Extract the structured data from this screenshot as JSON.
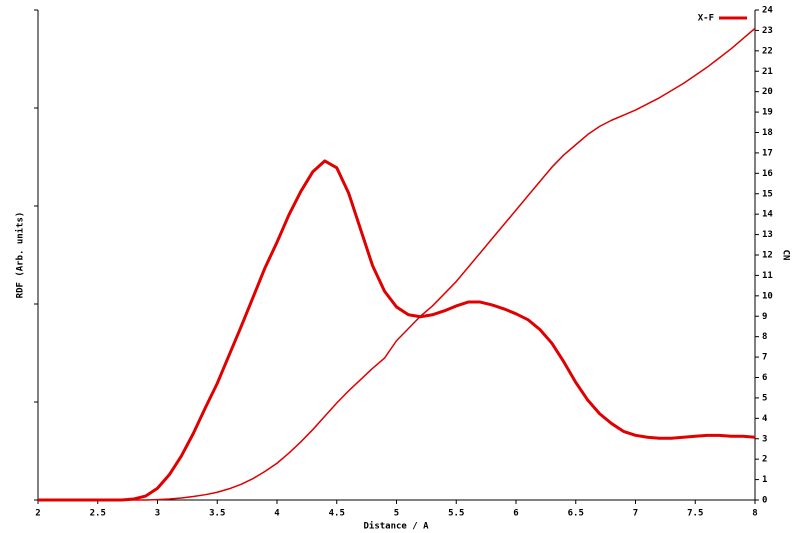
{
  "chart_data": {
    "type": "line",
    "xlabel": "Distance / A",
    "ylabel": "RDF (Arb. units)",
    "y2label": "CN",
    "x": [
      2.0,
      2.1,
      2.2,
      2.3,
      2.4,
      2.5,
      2.6,
      2.7,
      2.8,
      2.9,
      3.0,
      3.1,
      3.2,
      3.3,
      3.4,
      3.5,
      3.6,
      3.7,
      3.8,
      3.9,
      4.0,
      4.1,
      4.2,
      4.3,
      4.4,
      4.5,
      4.6,
      4.7,
      4.8,
      4.9,
      5.0,
      5.1,
      5.2,
      5.3,
      5.4,
      5.5,
      5.6,
      5.7,
      5.8,
      5.9,
      6.0,
      6.1,
      6.2,
      6.3,
      6.4,
      6.5,
      6.6,
      6.7,
      6.8,
      6.9,
      7.0,
      7.1,
      7.2,
      7.3,
      7.4,
      7.5,
      7.6,
      7.7,
      7.8,
      7.9,
      8.0
    ],
    "series": [
      {
        "name": "X-F",
        "color": "#e00000",
        "width": 3,
        "axis": "y",
        "values": [
          0,
          0,
          0,
          0,
          0,
          0,
          0,
          0,
          0.01,
          0.04,
          0.12,
          0.26,
          0.45,
          0.68,
          0.94,
          1.19,
          1.48,
          1.77,
          2.07,
          2.37,
          2.63,
          2.91,
          3.15,
          3.35,
          3.46,
          3.39,
          3.13,
          2.76,
          2.39,
          2.13,
          1.97,
          1.89,
          1.87,
          1.89,
          1.93,
          1.98,
          2.02,
          2.02,
          1.99,
          1.95,
          1.9,
          1.84,
          1.74,
          1.6,
          1.41,
          1.2,
          1.02,
          0.88,
          0.78,
          0.7,
          0.66,
          0.64,
          0.63,
          0.63,
          0.64,
          0.65,
          0.66,
          0.66,
          0.65,
          0.65,
          0.64
        ]
      },
      {
        "color": "#e00000",
        "width": 1.5,
        "axis": "y2",
        "values": [
          0,
          0,
          0,
          0,
          0,
          0,
          0,
          0,
          0,
          0,
          0.02,
          0.05,
          0.1,
          0.17,
          0.26,
          0.38,
          0.55,
          0.77,
          1.05,
          1.4,
          1.8,
          2.3,
          2.85,
          3.45,
          4.1,
          4.75,
          5.35,
          5.9,
          6.45,
          6.95,
          7.8,
          8.4,
          9.0,
          9.5,
          10.1,
          10.7,
          11.4,
          12.1,
          12.8,
          13.5,
          14.2,
          14.9,
          15.6,
          16.3,
          16.9,
          17.4,
          17.9,
          18.3,
          18.6,
          18.85,
          19.1,
          19.4,
          19.7,
          20.05,
          20.4,
          20.8,
          21.2,
          21.65,
          22.1,
          22.6,
          23.1
        ]
      }
    ],
    "xlim": [
      2,
      8
    ],
    "xticks": [
      2,
      2.5,
      3,
      3.5,
      4,
      4.5,
      5,
      5.5,
      6,
      6.5,
      7,
      7.5,
      8
    ],
    "ylim": [
      0,
      5
    ],
    "yticks": [
      0,
      1,
      2,
      3,
      4,
      5
    ],
    "ytick_labels": false,
    "y2lim": [
      0,
      24
    ],
    "y2ticks": [
      0,
      1,
      2,
      3,
      4,
      5,
      6,
      7,
      8,
      9,
      10,
      11,
      12,
      13,
      14,
      15,
      16,
      17,
      18,
      19,
      20,
      21,
      22,
      23,
      24
    ],
    "legend": "upper right",
    "grid": false
  }
}
